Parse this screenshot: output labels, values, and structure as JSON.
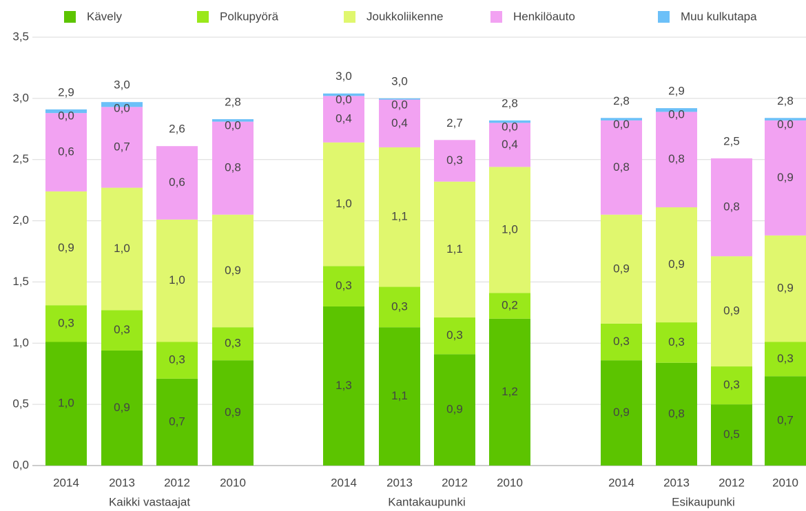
{
  "chart_data": {
    "type": "stacked-bar",
    "groups": [
      {
        "name": "Kaikki vastaajat",
        "categories": [
          "2014",
          "2013",
          "2012",
          "2010"
        ]
      },
      {
        "name": "Kantakaupunki",
        "categories": [
          "2014",
          "2013",
          "2012",
          "2010"
        ]
      },
      {
        "name": "Esikaupunki",
        "categories": [
          "2014",
          "2013",
          "2012",
          "2010"
        ]
      }
    ],
    "series": [
      {
        "name": "Kävely",
        "color": "#5cc400",
        "values": [
          1.01,
          0.94,
          0.71,
          0.86,
          1.3,
          1.13,
          0.91,
          1.2,
          0.86,
          0.84,
          0.5,
          0.73
        ],
        "value_labels": [
          "1,0",
          "0,9",
          "0,7",
          "0,9",
          "1,3",
          "1,1",
          "0,9",
          "1,2",
          "0,9",
          "0,8",
          "0,5",
          "0,7"
        ]
      },
      {
        "name": "Polkupyörä",
        "color": "#9ae81a",
        "values": [
          0.3,
          0.33,
          0.3,
          0.27,
          0.33,
          0.33,
          0.3,
          0.21,
          0.3,
          0.33,
          0.31,
          0.28
        ],
        "value_labels": [
          "0,3",
          "0,3",
          "0,3",
          "0,3",
          "0,3",
          "0,3",
          "0,3",
          "0,2",
          "0,3",
          "0,3",
          "0,3",
          "0,3"
        ]
      },
      {
        "name": "Joukkoliikenne",
        "color": "#e0f76e",
        "values": [
          0.93,
          1.0,
          1.0,
          0.92,
          1.01,
          1.14,
          1.11,
          1.03,
          0.89,
          0.94,
          0.9,
          0.87
        ],
        "value_labels": [
          "0,9",
          "1,0",
          "1,0",
          "0,9",
          "1,0",
          "1,1",
          "1,1",
          "1,0",
          "0,9",
          "0,9",
          "0,9",
          "0,9"
        ]
      },
      {
        "name": "Henkilöauto",
        "color": "#f2a2f2",
        "values": [
          0.64,
          0.66,
          0.6,
          0.76,
          0.38,
          0.39,
          0.34,
          0.36,
          0.77,
          0.78,
          0.8,
          0.94
        ],
        "value_labels": [
          "0,6",
          "0,7",
          "0,6",
          "0,8",
          "0,4",
          "0,4",
          "0,3",
          "0,4",
          "0,8",
          "0,8",
          "0,8",
          "0,9"
        ]
      },
      {
        "name": "Muu kulkutapa",
        "color": "#6cc0f8",
        "values": [
          0.03,
          0.04,
          0.0,
          0.02,
          0.02,
          0.01,
          0.0,
          0.02,
          0.02,
          0.03,
          0.0,
          0.02
        ],
        "value_labels": [
          "0,0",
          "0,0",
          null,
          "0,0",
          "0,0",
          "0,0",
          null,
          "0,0",
          "0,0",
          "0,0",
          null,
          "0,0"
        ]
      }
    ],
    "totals": {
      "values": [
        2.91,
        3.0,
        2.61,
        2.83,
        3.04,
        3.0,
        2.66,
        2.82,
        2.84,
        2.92,
        2.51,
        2.84
      ],
      "value_labels": [
        "2,9",
        "3,0",
        "2,6",
        "2,8",
        "3,0",
        "3,0",
        "2,7",
        "2,8",
        "2,8",
        "2,9",
        "2,5",
        "2,8"
      ]
    },
    "ylim": [
      0,
      3.5
    ],
    "yticks": [
      {
        "value": 0,
        "label": "0,0"
      },
      {
        "value": 0.5,
        "label": "0,5"
      },
      {
        "value": 1,
        "label": "1,0"
      },
      {
        "value": 1.5,
        "label": "1,5"
      },
      {
        "value": 2,
        "label": "2,0"
      },
      {
        "value": 2.5,
        "label": "2,5"
      },
      {
        "value": 3,
        "label": "3,0"
      },
      {
        "value": 3.5,
        "label": "3,5"
      }
    ],
    "grid": true
  }
}
